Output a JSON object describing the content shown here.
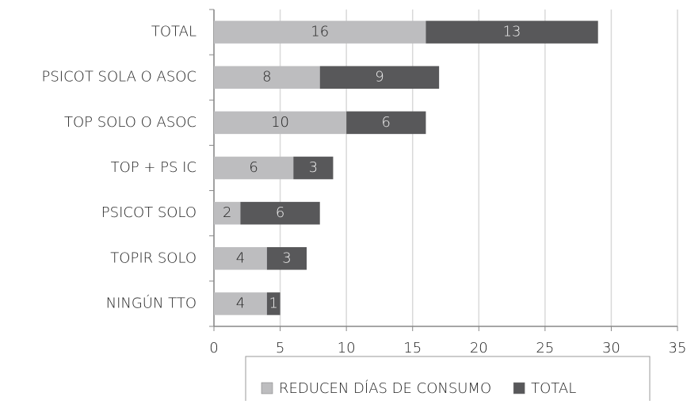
{
  "chart_data": {
    "type": "stacked-barh",
    "categories": [
      "TOTAL",
      "PSICOT SOLA O ASOC",
      "TOP SOLO O ASOC",
      "TOP + PS IC",
      "PSICOT SOLO",
      "TOPIR SOLO",
      "NINGÚN TTO"
    ],
    "series": [
      {
        "name": "REDUCEN DÍAS DE CONSUMO",
        "color": "#bdbdbf",
        "values": [
          16,
          8,
          10,
          6,
          2,
          4,
          4
        ]
      },
      {
        "name": "TOTAL",
        "color": "#58585a",
        "values": [
          13,
          9,
          6,
          3,
          6,
          3,
          1
        ]
      }
    ],
    "xlim": [
      0,
      35
    ],
    "xticks": [
      0,
      5,
      10,
      15,
      20,
      25,
      30,
      35
    ],
    "grid": true,
    "legend": "bottom"
  }
}
